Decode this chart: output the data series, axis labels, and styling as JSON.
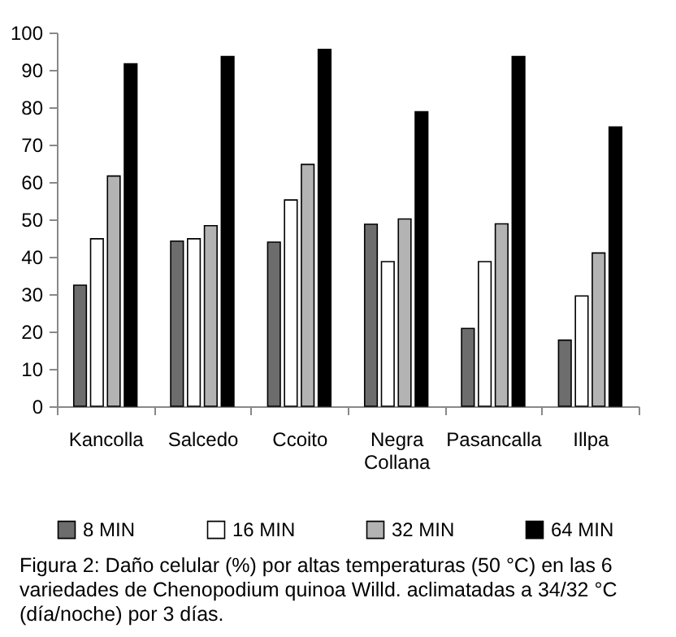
{
  "chart_data": {
    "type": "bar",
    "categories": [
      "Kancolla",
      "Salcedo",
      "Ccoito",
      "Negra Collana",
      "Pasancalla",
      "Illpa"
    ],
    "series": [
      {
        "name": "8 MIN",
        "color": "#6d6d6d",
        "values": [
          32.4,
          44.2,
          43.9,
          48.7,
          20.8,
          17.7
        ]
      },
      {
        "name": "16 MIN",
        "color": "#ffffff",
        "values": [
          44.8,
          44.8,
          55.2,
          38.7,
          38.7,
          29.5
        ]
      },
      {
        "name": "32 MIN",
        "color": "#b3b3b3",
        "values": [
          61.6,
          48.3,
          64.7,
          50.1,
          48.8,
          41.0
        ]
      },
      {
        "name": "64 MIN",
        "color": "#000000",
        "values": [
          91.6,
          93.6,
          95.5,
          78.8,
          93.6,
          74.7
        ]
      }
    ],
    "ylim": [
      0,
      100
    ],
    "yticks": [
      0,
      10,
      20,
      30,
      40,
      50,
      60,
      70,
      80,
      90,
      100
    ],
    "grid": false,
    "legend": "bottom",
    "annotations": [
      "Figura 2: Daño celular (%) por altas temperaturas (50 °C) en las 6 variedades de Chenopodium quinoa Willd. aclimatadas a 34/32 °C (día/noche) por 3 días."
    ]
  }
}
